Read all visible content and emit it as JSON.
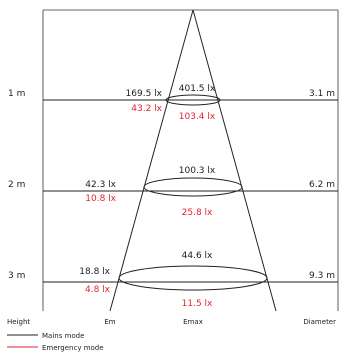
{
  "heights": [
    "1 m",
    "2 m",
    "3 m"
  ],
  "levels": [
    {
      "height": "1 m",
      "em_mains": "169.5 lx",
      "em_emergency": "43.2 lx",
      "emax_mains": "401.5 lx",
      "emax_emergency": "103.4 lx",
      "diameter": "3.1 m"
    },
    {
      "height": "2 m",
      "em_mains": "42.3 lx",
      "em_emergency": "10.8 lx",
      "emax_mains": "100.3 lx",
      "emax_emergency": "25.8 lx",
      "diameter": "6.2 m"
    },
    {
      "height": "3 m",
      "em_mains": "18.8 lx",
      "em_emergency": "4.8 lx",
      "emax_mains": "44.6 lx",
      "emax_emergency": "11.5 lx",
      "diameter": "9.3 m"
    }
  ],
  "axis": {
    "height": "Height",
    "em": "Em",
    "emax": "Emax",
    "diameter": "Diameter"
  },
  "legend": [
    {
      "label": "Mains mode",
      "color": "#222222"
    },
    {
      "label": "Emergency mode",
      "color": "#e0262b"
    }
  ],
  "colors": {
    "mains": "#222222",
    "emergency": "#e0262b",
    "frame": "#333333"
  }
}
